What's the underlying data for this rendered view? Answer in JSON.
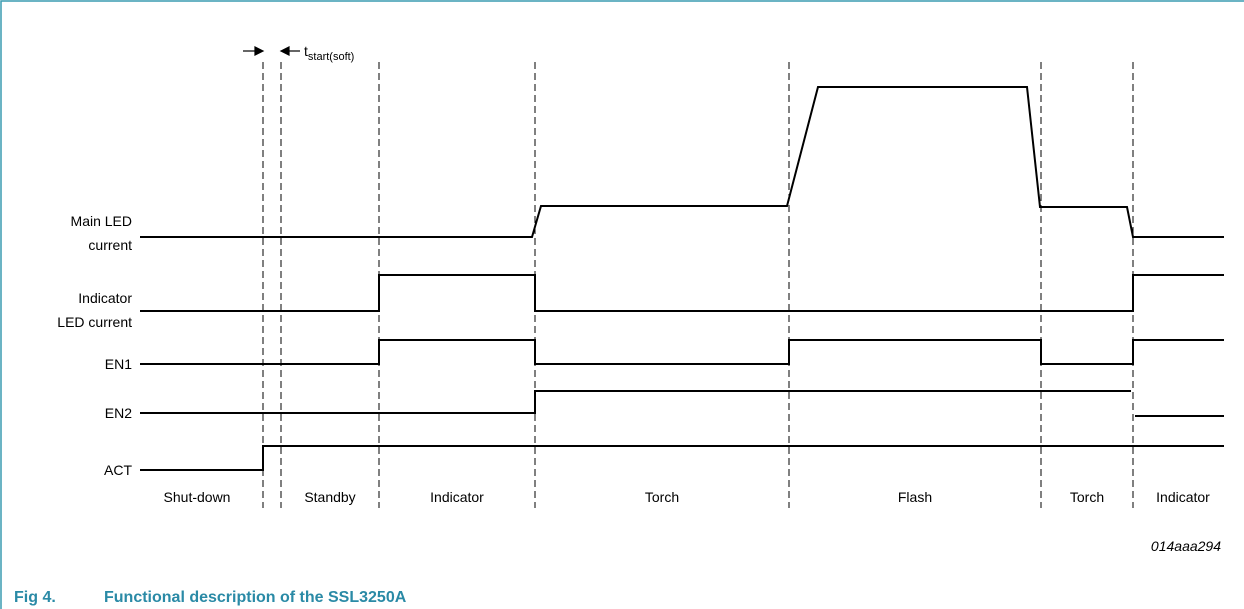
{
  "signals": [
    {
      "label": [
        "Main LED",
        "current"
      ]
    },
    {
      "label": [
        "Indicator",
        "LED current"
      ]
    },
    {
      "label": [
        "EN1"
      ]
    },
    {
      "label": [
        "EN2"
      ]
    },
    {
      "label": [
        "ACT"
      ]
    }
  ],
  "phases": [
    "Shut-down",
    "Standby",
    "Indicator",
    "Torch",
    "Flash",
    "Torch",
    "Indicator"
  ],
  "annotation": {
    "symbol": "t",
    "subscript": "start(soft)"
  },
  "figure_id": "014aaa294",
  "caption": {
    "number": "Fig 4.",
    "text": "Functional description of the SSL3250A"
  }
}
